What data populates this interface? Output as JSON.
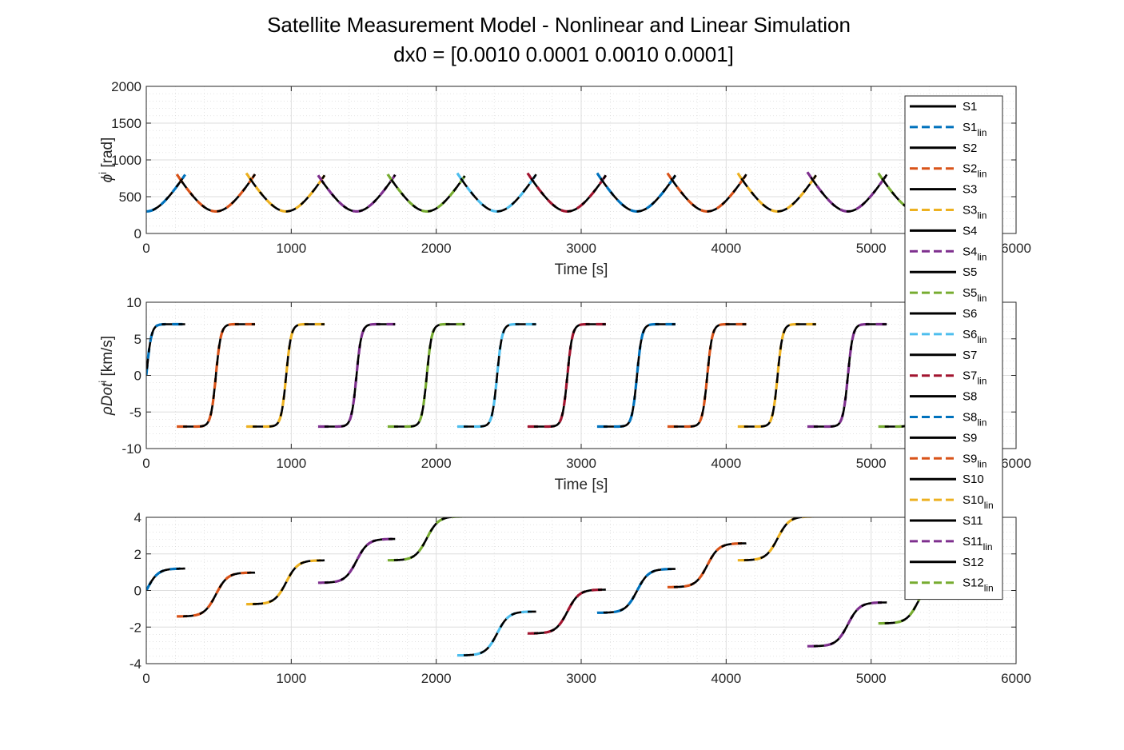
{
  "chart_data": {
    "title": "Satellite Measurement Model - Nonlinear and Linear Simulation",
    "subtitle": "dx0 = [0.0010 0.0001 0.0010 0.0001]",
    "type": "line",
    "grid": true,
    "minor_grid": true,
    "legend_placement": "right, overlapping axes",
    "station_colors": [
      "#0072BD",
      "#D95319",
      "#EDB120",
      "#7E2F8E",
      "#77AC30",
      "#4DBEEE",
      "#A2142F",
      "#0072BD",
      "#D95319",
      "#EDB120",
      "#7E2F8E",
      "#77AC30"
    ],
    "legend": [
      {
        "name": "S1",
        "sub": ""
      },
      {
        "name": "S1",
        "sub": "lin"
      },
      {
        "name": "S2",
        "sub": ""
      },
      {
        "name": "S2",
        "sub": "lin"
      },
      {
        "name": "S3",
        "sub": ""
      },
      {
        "name": "S3",
        "sub": "lin"
      },
      {
        "name": "S4",
        "sub": ""
      },
      {
        "name": "S4",
        "sub": "lin"
      },
      {
        "name": "S5",
        "sub": ""
      },
      {
        "name": "S5",
        "sub": "lin"
      },
      {
        "name": "S6",
        "sub": ""
      },
      {
        "name": "S6",
        "sub": "lin"
      },
      {
        "name": "S7",
        "sub": ""
      },
      {
        "name": "S7",
        "sub": "lin"
      },
      {
        "name": "S8",
        "sub": ""
      },
      {
        "name": "S8",
        "sub": "lin"
      },
      {
        "name": "S9",
        "sub": ""
      },
      {
        "name": "S9",
        "sub": "lin"
      },
      {
        "name": "S10",
        "sub": ""
      },
      {
        "name": "S10",
        "sub": "lin"
      },
      {
        "name": "S11",
        "sub": ""
      },
      {
        "name": "S11",
        "sub": "lin"
      },
      {
        "name": "S12",
        "sub": ""
      },
      {
        "name": "S12",
        "sub": "lin"
      }
    ],
    "segments": [
      {
        "station": 0,
        "t_start": 0,
        "t_end": 270
      },
      {
        "station": 1,
        "t_start": 210,
        "t_end": 750
      },
      {
        "station": 2,
        "t_start": 690,
        "t_end": 1230
      },
      {
        "station": 3,
        "t_start": 1185,
        "t_end": 1720
      },
      {
        "station": 4,
        "t_start": 1665,
        "t_end": 2200
      },
      {
        "station": 5,
        "t_start": 2145,
        "t_end": 2690
      },
      {
        "station": 6,
        "t_start": 2630,
        "t_end": 3170
      },
      {
        "station": 7,
        "t_start": 3110,
        "t_end": 3650
      },
      {
        "station": 8,
        "t_start": 3595,
        "t_end": 4140
      },
      {
        "station": 9,
        "t_start": 4080,
        "t_end": 4620
      },
      {
        "station": 10,
        "t_start": 4560,
        "t_end": 5110
      },
      {
        "station": 11,
        "t_start": 5050,
        "t_end": 5500
      }
    ],
    "pass_centers": [
      0,
      480,
      965,
      1450,
      1935,
      2420,
      2905,
      3385,
      3870,
      4355,
      4840,
      5325
    ],
    "subplots": [
      {
        "key": "phi",
        "ylabel": "ϕ",
        "ylabel_sup": "i",
        "ylabel_suffix": " [rad]",
        "xlabel": "Time [s]",
        "xlim": [
          0,
          6000
        ],
        "ylim": [
          0,
          2000
        ],
        "xticks": [
          0,
          1000,
          2000,
          3000,
          4000,
          5000,
          6000
        ],
        "yticks": [
          0,
          500,
          1000,
          1500,
          2000
        ],
        "xtick_labels": [
          "0",
          "1000",
          "2000",
          "3000",
          "4000",
          "5000",
          "6000"
        ],
        "ytick_labels": [
          "0",
          "500",
          "1000",
          "1500",
          "2000"
        ],
        "model": {
          "min": 300,
          "slope": 3.5,
          "curv": 180
        }
      },
      {
        "key": "rhodot",
        "ylabel": "ρDot",
        "ylabel_sup": "i",
        "ylabel_suffix": " [km/s]",
        "xlabel": "Time [s]",
        "xlim": [
          0,
          6000
        ],
        "ylim": [
          -10,
          10
        ],
        "xticks": [
          0,
          1000,
          2000,
          3000,
          4000,
          5000,
          6000
        ],
        "yticks": [
          -10,
          -5,
          0,
          5,
          10
        ],
        "xtick_labels": [
          "0",
          "1000",
          "2000",
          "3000",
          "4000",
          "5000",
          "6000"
        ],
        "ytick_labels": [
          "-10",
          "-5",
          "0",
          "5",
          "10"
        ],
        "model": {
          "amp": 7,
          "width": 35
        }
      },
      {
        "key": "elev",
        "ylabel": "",
        "ylabel_sup": "",
        "ylabel_suffix": "",
        "xlabel": "",
        "xlim": [
          0,
          6000
        ],
        "ylim": [
          -4,
          4
        ],
        "xticks": [
          0,
          1000,
          2000,
          3000,
          4000,
          5000,
          6000
        ],
        "yticks": [
          -4,
          -2,
          0,
          2,
          4
        ],
        "xtick_labels": [
          "0",
          "1000",
          "2000",
          "3000",
          "4000",
          "5000",
          "6000"
        ],
        "ytick_labels": [
          "-4",
          "-2",
          "0",
          "2",
          "4"
        ],
        "model": {
          "offsets": [
            0,
            -0.22,
            0.45,
            1.62,
            2.85,
            -2.35,
            -1.15,
            -0.02,
            1.38,
            2.85,
            -1.85,
            -0.6
          ],
          "amp": 1.2,
          "width": 80
        }
      }
    ]
  }
}
